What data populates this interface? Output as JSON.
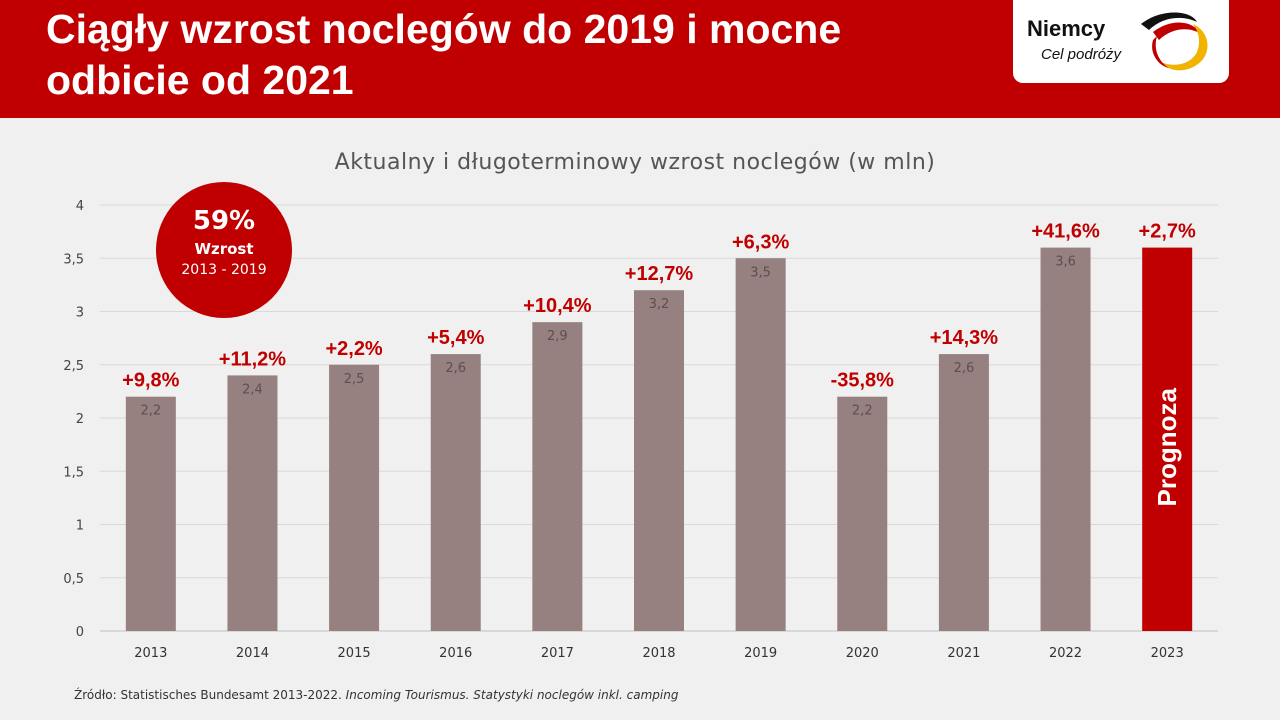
{
  "header": {
    "title": "Ciągły wzrost noclegów do 2019 i mocne odbicie od 2021"
  },
  "logo": {
    "name": "Niemcy",
    "tagline": "Cel podróży"
  },
  "badge": {
    "value": "59%",
    "label": "Wzrost",
    "period": "2013 - 2019"
  },
  "source": {
    "text": "Źródło: Statistisches Bundesamt 2013-2022. ",
    "italic": "Incoming Tourismus. Statystyki noclegów inkl. camping"
  },
  "chart_data": {
    "type": "bar",
    "title": "Aktualny i długoterminowy wzrost noclegów (w mln)",
    "categories": [
      "2013",
      "2014",
      "2015",
      "2016",
      "2017",
      "2018",
      "2019",
      "2020",
      "2021",
      "2022",
      "2023"
    ],
    "values": [
      2.2,
      2.4,
      2.5,
      2.6,
      2.9,
      3.2,
      3.5,
      2.2,
      2.6,
      3.6,
      3.6
    ],
    "value_labels": [
      "2,2",
      "2,4",
      "2,5",
      "2,6",
      "2,9",
      "3,2",
      "3,5",
      "2,2",
      "2,6",
      "3,6",
      ""
    ],
    "growth_labels": [
      "+9,8%",
      "+11,2%",
      "+2,2%",
      "+5,4%",
      "+10,4%",
      "+12,7%",
      "+6,3%",
      "-35,8%",
      "+14,3%",
      "+41,6%",
      "+2,7%"
    ],
    "forecast_label": "Prognoza",
    "ylim": [
      0,
      4
    ],
    "yticks": [
      "0",
      "0,5",
      "1",
      "1,5",
      "2",
      "2,5",
      "3",
      "3,5",
      "4"
    ],
    "grid": true,
    "colors": {
      "bar": "#968080",
      "forecast": "#c00000",
      "growth": "#c00000",
      "grid": "#d9d9d9"
    }
  }
}
